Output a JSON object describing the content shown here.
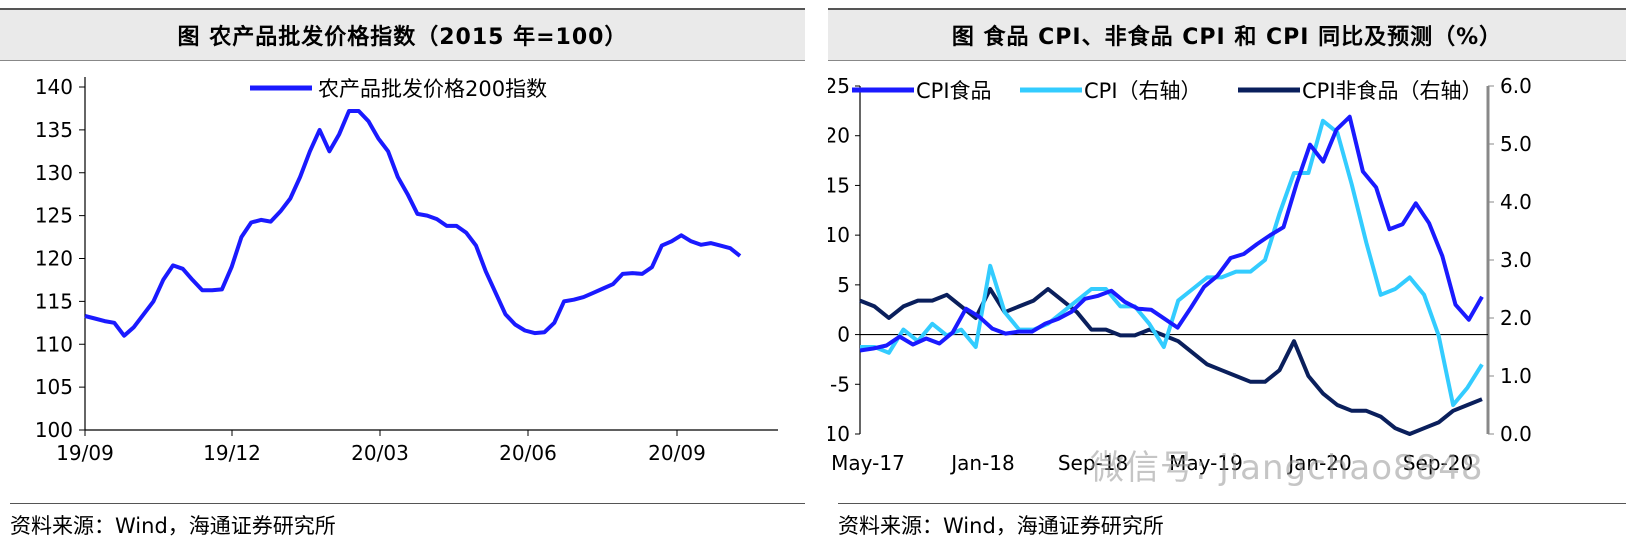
{
  "left_title": "图  农产品批发价格指数（2015 年=100）",
  "right_title": "图  食品 CPI、非食品 CPI 和 CPI 同比及预测（%）",
  "source_left": "资料来源：Wind，海通证券研究所",
  "source_right": "资料来源：Wind，海通证券研究所",
  "watermark": "微信号: jiangchao8848",
  "chart_data": [
    {
      "type": "line",
      "title": "农产品批发价格指数（2015 年=100）",
      "ylim": [
        100,
        140
      ],
      "yticks": [
        100,
        105,
        110,
        115,
        120,
        125,
        130,
        135,
        140
      ],
      "xticks": [
        "19/09",
        "19/12",
        "20/03",
        "20/06",
        "20/09"
      ],
      "legend_position": "top",
      "series": [
        {
          "name": "农产品批发价格200指数",
          "color": "#1a1aff",
          "values": [
            113.3,
            113.0,
            112.7,
            112.5,
            111.0,
            112.0,
            113.5,
            115.0,
            117.5,
            119.2,
            118.8,
            117.5,
            116.3,
            116.3,
            116.4,
            119.0,
            122.5,
            124.2,
            124.5,
            124.3,
            125.5,
            127.0,
            129.5,
            132.5,
            135.0,
            132.5,
            134.5,
            137.2,
            137.2,
            136.0,
            134.0,
            132.5,
            129.5,
            127.5,
            125.2,
            125.0,
            124.6,
            123.8,
            123.8,
            123.0,
            121.5,
            118.5,
            116.0,
            113.5,
            112.3,
            111.6,
            111.3,
            111.4,
            112.5,
            115.0,
            115.2,
            115.5,
            116.0,
            116.5,
            117.0,
            118.2,
            118.3,
            118.2,
            119.0,
            121.5,
            122.0,
            122.7,
            122.0,
            121.6,
            121.8,
            121.5,
            121.2,
            120.3
          ]
        }
      ]
    },
    {
      "type": "line",
      "title": "食品 CPI、非食品 CPI 和 CPI 同比及预测（%）",
      "ylim": [
        -10,
        25
      ],
      "yticks": [
        -10,
        -5,
        0,
        5,
        10,
        15,
        20,
        25
      ],
      "y2lim": [
        0.0,
        6.0
      ],
      "y2ticks": [
        "0.0",
        "1.0",
        "2.0",
        "3.0",
        "4.0",
        "5.0",
        "6.0"
      ],
      "xticks": [
        "May-17",
        "Jan-18",
        "Sep-18",
        "May-19",
        "Jan-20",
        "Sep-20"
      ],
      "legend_position": "top",
      "series": [
        {
          "name": "CPI食品",
          "axis": "left",
          "color": "#1a1aff",
          "values": [
            -1.6,
            -1.4,
            -1.1,
            -0.2,
            -1.0,
            -0.4,
            -0.9,
            0.2,
            2.6,
            1.8,
            0.6,
            0.1,
            0.3,
            0.3,
            1.1,
            1.6,
            2.3,
            3.6,
            3.9,
            4.4,
            3.3,
            2.6,
            2.5,
            1.6,
            0.7,
            2.7,
            4.8,
            5.9,
            7.7,
            8.1,
            9.1,
            10.0,
            10.8,
            15.2,
            19.1,
            17.4,
            20.6,
            21.9,
            16.4,
            14.8,
            10.6,
            11.1,
            13.2,
            11.2,
            7.9,
            3.0,
            1.5,
            3.8
          ]
        },
        {
          "name": "CPI（右轴）",
          "axis": "right",
          "color": "#33ccff",
          "values": [
            1.5,
            1.5,
            1.4,
            1.8,
            1.6,
            1.9,
            1.7,
            1.8,
            1.5,
            2.9,
            2.1,
            1.8,
            1.8,
            1.9,
            2.1,
            2.3,
            2.5,
            2.5,
            2.2,
            2.2,
            1.9,
            1.5,
            2.3,
            2.5,
            2.7,
            2.7,
            2.8,
            2.8,
            3.0,
            3.8,
            4.5,
            4.5,
            5.4,
            5.2,
            4.3,
            3.3,
            2.4,
            2.5,
            2.7,
            2.4,
            1.7,
            0.5,
            0.8,
            1.2
          ]
        },
        {
          "name": "CPI非食品（右轴）",
          "axis": "right",
          "color": "#0a1f5c",
          "values": [
            2.3,
            2.2,
            2.0,
            2.2,
            2.3,
            2.3,
            2.4,
            2.2,
            2.0,
            2.5,
            2.1,
            2.2,
            2.3,
            2.5,
            2.3,
            2.1,
            1.8,
            1.8,
            1.7,
            1.7,
            1.8,
            1.7,
            1.6,
            1.4,
            1.2,
            1.1,
            1.0,
            0.9,
            0.9,
            1.1,
            1.6,
            1.0,
            0.7,
            0.5,
            0.4,
            0.4,
            0.3,
            0.1,
            0.0,
            0.1,
            0.2,
            0.4,
            0.5,
            0.6
          ]
        }
      ]
    }
  ]
}
